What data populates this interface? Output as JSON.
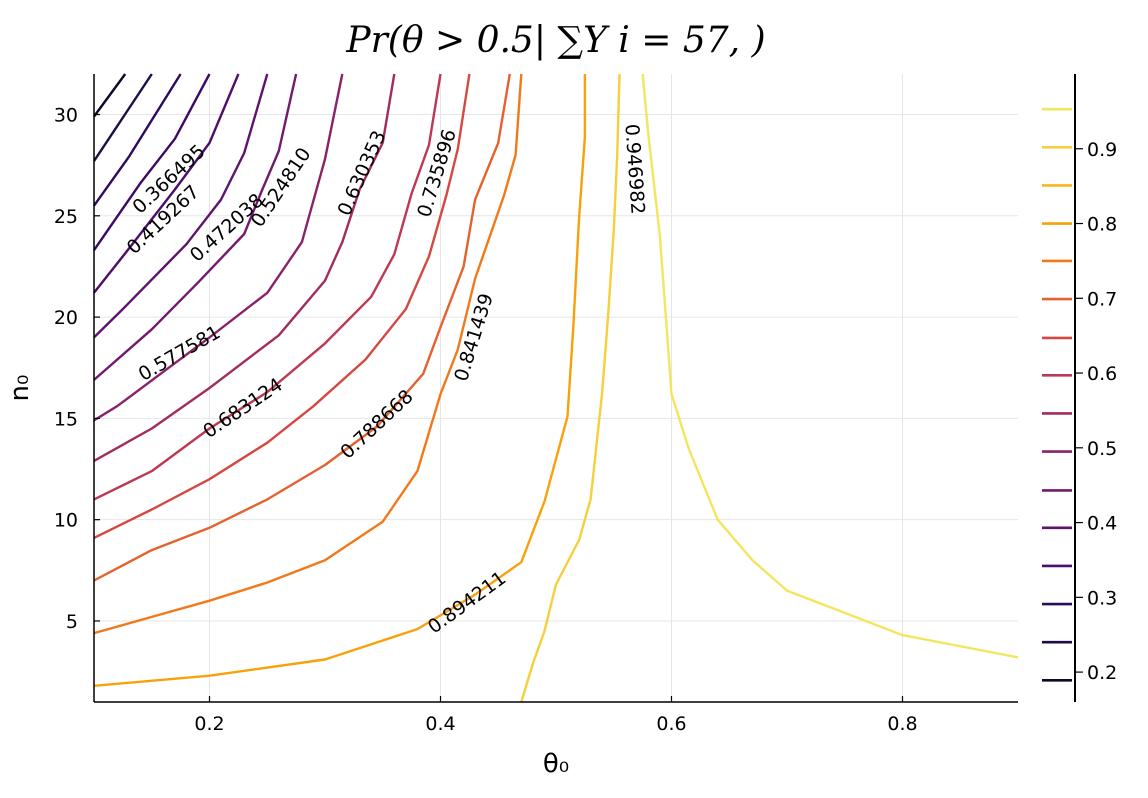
{
  "chart_data": {
    "type": "contour",
    "title": "Pr(θ > 0.5| ∑Y i = 57, )",
    "xlabel": "θ₀",
    "ylabel": "n₀",
    "xlim": [
      0.1,
      0.9
    ],
    "ylim": [
      1,
      32
    ],
    "xticks": [
      0.2,
      0.4,
      0.6,
      0.8
    ],
    "xtick_labels": [
      "0.2",
      "0.4",
      "0.6",
      "0.8"
    ],
    "yticks": [
      5,
      10,
      15,
      20,
      25,
      30
    ],
    "ytick_labels": [
      "5",
      "10",
      "15",
      "20",
      "25",
      "30"
    ],
    "grid": true,
    "colorbar": {
      "ticks": [
        0.2,
        0.3,
        0.4,
        0.5,
        0.6,
        0.7,
        0.8,
        0.9
      ],
      "tick_labels": [
        "0.2",
        "0.3",
        "0.4",
        "0.5",
        "0.6",
        "0.7",
        "0.8",
        "0.9"
      ],
      "range": [
        0.16,
        1.0
      ]
    },
    "levels": [
      {
        "value": 0.208,
        "label": "",
        "color": "#0d0829",
        "points": [
          [
            0.1,
            29.9
          ],
          [
            0.127,
            32
          ]
        ]
      },
      {
        "value": 0.261,
        "label": "",
        "color": "#1d0c45",
        "points": [
          [
            0.1,
            27.7
          ],
          [
            0.15,
            32
          ]
        ]
      },
      {
        "value": 0.314,
        "label": "",
        "color": "#2e0a5d",
        "points": [
          [
            0.1,
            25.5
          ],
          [
            0.13,
            27.9
          ],
          [
            0.175,
            32
          ]
        ]
      },
      {
        "value": 0.366495,
        "label": "0.366495",
        "color": "#3d0965",
        "points": [
          [
            0.1,
            23.3
          ],
          [
            0.14,
            26.6
          ],
          [
            0.17,
            28.8
          ],
          [
            0.2,
            32
          ]
        ]
      },
      {
        "value": 0.419267,
        "label": "0.419267",
        "color": "#4e0d6b",
        "points": [
          [
            0.1,
            21.2
          ],
          [
            0.125,
            23.0
          ],
          [
            0.17,
            26.3
          ],
          [
            0.2,
            28.6
          ],
          [
            0.225,
            32
          ]
        ]
      },
      {
        "value": 0.472038,
        "label": "0.472038",
        "color": "#5f136e",
        "points": [
          [
            0.1,
            19.0
          ],
          [
            0.125,
            20.4
          ],
          [
            0.18,
            23.6
          ],
          [
            0.21,
            25.8
          ],
          [
            0.23,
            28.1
          ],
          [
            0.25,
            32
          ]
        ]
      },
      {
        "value": 0.52481,
        "label": "0.524810",
        "color": "#711a6e",
        "points": [
          [
            0.1,
            16.9
          ],
          [
            0.15,
            19.4
          ],
          [
            0.19,
            21.7
          ],
          [
            0.23,
            24.1
          ],
          [
            0.245,
            26.2
          ],
          [
            0.26,
            28.2
          ],
          [
            0.275,
            32
          ]
        ]
      },
      {
        "value": 0.577581,
        "label": "0.577581",
        "color": "#8a226a",
        "points": [
          [
            0.1,
            14.9
          ],
          [
            0.12,
            15.6
          ],
          [
            0.16,
            17.3
          ],
          [
            0.2,
            19.0
          ],
          [
            0.25,
            21.2
          ],
          [
            0.28,
            23.7
          ],
          [
            0.3,
            27.8
          ],
          [
            0.315,
            32
          ]
        ]
      },
      {
        "value": 0.630353,
        "label": "0.630353",
        "color": "#a32c5f",
        "points": [
          [
            0.1,
            12.9
          ],
          [
            0.15,
            14.5
          ],
          [
            0.2,
            16.5
          ],
          [
            0.26,
            19.1
          ],
          [
            0.3,
            21.8
          ],
          [
            0.315,
            23.7
          ],
          [
            0.33,
            26.3
          ],
          [
            0.35,
            28.6
          ],
          [
            0.36,
            32
          ]
        ]
      },
      {
        "value": 0.683124,
        "label": "0.683124",
        "color": "#bd3853",
        "points": [
          [
            0.1,
            11.0
          ],
          [
            0.15,
            12.4
          ],
          [
            0.2,
            14.5
          ],
          [
            0.25,
            16.3
          ],
          [
            0.3,
            18.7
          ],
          [
            0.34,
            21.0
          ],
          [
            0.36,
            23.1
          ],
          [
            0.375,
            26.1
          ],
          [
            0.39,
            28.5
          ],
          [
            0.4,
            32
          ]
        ]
      },
      {
        "value": 0.735896,
        "label": "0.735896",
        "color": "#d44842",
        "points": [
          [
            0.1,
            9.1
          ],
          [
            0.15,
            10.5
          ],
          [
            0.2,
            12.0
          ],
          [
            0.25,
            13.8
          ],
          [
            0.29,
            15.6
          ],
          [
            0.335,
            17.9
          ],
          [
            0.37,
            20.4
          ],
          [
            0.39,
            23.0
          ],
          [
            0.405,
            26.0
          ],
          [
            0.415,
            28.3
          ],
          [
            0.425,
            32
          ]
        ]
      },
      {
        "value": 0.788668,
        "label": "0.788668",
        "color": "#e5612f",
        "points": [
          [
            0.1,
            7.0
          ],
          [
            0.15,
            8.5
          ],
          [
            0.2,
            9.6
          ],
          [
            0.25,
            11.0
          ],
          [
            0.3,
            12.7
          ],
          [
            0.345,
            14.6
          ],
          [
            0.385,
            17.2
          ],
          [
            0.4,
            19.5
          ],
          [
            0.42,
            22.5
          ],
          [
            0.43,
            25.8
          ],
          [
            0.45,
            28.6
          ],
          [
            0.46,
            32
          ]
        ]
      },
      {
        "value": 0.841439,
        "label": "0.841439",
        "color": "#f2791a",
        "points": [
          [
            0.1,
            4.4
          ],
          [
            0.15,
            5.2
          ],
          [
            0.2,
            6.0
          ],
          [
            0.25,
            6.9
          ],
          [
            0.3,
            8.0
          ],
          [
            0.35,
            9.9
          ],
          [
            0.38,
            12.4
          ],
          [
            0.4,
            16.2
          ],
          [
            0.415,
            18.4
          ],
          [
            0.43,
            21.9
          ],
          [
            0.455,
            26.0
          ],
          [
            0.465,
            28.0
          ],
          [
            0.47,
            32
          ]
        ]
      },
      {
        "value": 0.894211,
        "label": "0.894211",
        "color": "#f8a10a",
        "points": [
          [
            0.1,
            1.8
          ],
          [
            0.2,
            2.3
          ],
          [
            0.3,
            3.1
          ],
          [
            0.38,
            4.6
          ],
          [
            0.43,
            6.3
          ],
          [
            0.47,
            7.9
          ],
          [
            0.49,
            10.9
          ],
          [
            0.51,
            15.1
          ],
          [
            0.515,
            19.5
          ],
          [
            0.52,
            24.9
          ],
          [
            0.525,
            28.9
          ],
          [
            0.525,
            32
          ]
        ]
      },
      {
        "value": 0.946982,
        "label": "0.946982",
        "color": "#f6cf3c",
        "points": [
          [
            0.555,
            32
          ],
          [
            0.553,
            28.0
          ],
          [
            0.55,
            24.3
          ],
          [
            0.545,
            20.0
          ],
          [
            0.54,
            16.3
          ],
          [
            0.53,
            11.0
          ],
          [
            0.52,
            9.0
          ],
          [
            0.5,
            6.8
          ],
          [
            0.49,
            4.5
          ],
          [
            0.48,
            2.9
          ],
          [
            0.47,
            1.0
          ]
        ]
      },
      {
        "value": 0.946982,
        "label": "0.946982",
        "color": "#f3e55d",
        "points": [
          [
            0.575,
            32
          ],
          [
            0.58,
            29.0
          ],
          [
            0.59,
            24.0
          ],
          [
            0.6,
            16.2
          ],
          [
            0.615,
            13.5
          ],
          [
            0.64,
            10.0
          ],
          [
            0.67,
            8.0
          ],
          [
            0.7,
            6.5
          ],
          [
            0.75,
            5.4
          ],
          [
            0.8,
            4.3
          ],
          [
            0.9,
            3.2
          ]
        ]
      }
    ],
    "label_positions": [
      {
        "label": "0.366495",
        "x": 0.165,
        "y": 26.8,
        "angle": -43
      },
      {
        "label": "0.419267",
        "x": 0.16,
        "y": 24.8,
        "angle": -43
      },
      {
        "label": "0.472038",
        "x": 0.215,
        "y": 24.4,
        "angle": -42
      },
      {
        "label": "0.524810",
        "x": 0.262,
        "y": 26.4,
        "angle": -56
      },
      {
        "label": "0.630353",
        "x": 0.332,
        "y": 27.1,
        "angle": -66
      },
      {
        "label": "0.735896",
        "x": 0.397,
        "y": 27.1,
        "angle": -73
      },
      {
        "label": "0.577581",
        "x": 0.174,
        "y": 18.2,
        "angle": -30
      },
      {
        "label": "0.683124",
        "x": 0.229,
        "y": 15.5,
        "angle": -34
      },
      {
        "label": "0.788668",
        "x": 0.345,
        "y": 14.7,
        "angle": -43
      },
      {
        "label": "0.841439",
        "x": 0.429,
        "y": 19.0,
        "angle": -73
      },
      {
        "label": "0.894211",
        "x": 0.423,
        "y": 5.9,
        "angle": -36
      },
      {
        "label": "0.946982",
        "x": 0.568,
        "y": 27.3,
        "angle": 86
      }
    ],
    "colorbar_swatches": [
      "#f3e55d",
      "#f6cf3c",
      "#f9b51e",
      "#f8a10a",
      "#f2791a",
      "#e5612f",
      "#d44842",
      "#bd3853",
      "#a32c5f",
      "#8a226a",
      "#711a6e",
      "#5f136e",
      "#4e0d6b",
      "#2e0a5d",
      "#1d0c45",
      "#0d0829"
    ],
    "colorbar_swatch_values": [
      0.953,
      0.902,
      0.851,
      0.8,
      0.75,
      0.699,
      0.647,
      0.597,
      0.546,
      0.495,
      0.443,
      0.393,
      0.342,
      0.291,
      0.24,
      0.189
    ]
  }
}
